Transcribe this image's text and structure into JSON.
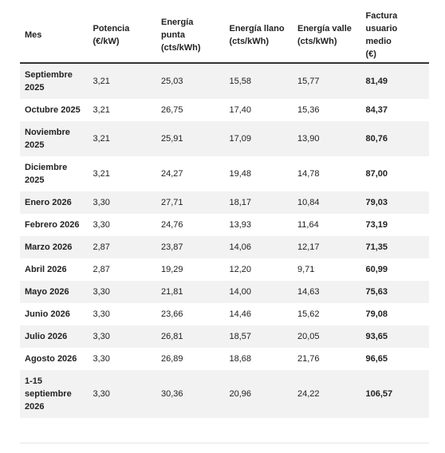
{
  "table": {
    "header": [
      [
        "Mes"
      ],
      [
        "Potencia",
        "(€/kW)"
      ],
      [
        "Energía",
        "punta",
        "(cts/kWh)"
      ],
      [
        "Energía llano",
        "(cts/kWh)"
      ],
      [
        "Energía valle",
        "(cts/kWh)"
      ],
      [
        "Factura",
        "usuario",
        "medio",
        "(€)"
      ]
    ],
    "rows": [
      [
        "Septiembre 2025",
        "3,21",
        "25,03",
        "15,58",
        "15,77",
        "81,49"
      ],
      [
        "Octubre 2025",
        "3,21",
        "26,75",
        "17,40",
        "15,36",
        "84,37"
      ],
      [
        "Noviembre 2025",
        "3,21",
        "25,91",
        "17,09",
        "13,90",
        "80,76"
      ],
      [
        "Diciembre 2025",
        "3,21",
        "24,27",
        "19,48",
        "14,78",
        "87,00"
      ],
      [
        "Enero 2026",
        "3,30",
        "27,71",
        "18,17",
        "10,84",
        "79,03"
      ],
      [
        "Febrero 2026",
        "3,30",
        "24,76",
        "13,93",
        "11,64",
        "73,19"
      ],
      [
        "Marzo 2026",
        "2,87",
        "23,87",
        "14,06",
        "12,17",
        "71,35"
      ],
      [
        "Abril 2026",
        "2,87",
        "19,29",
        "12,20",
        "9,71",
        "60,99"
      ],
      [
        "Mayo 2026",
        "3,30",
        "21,81",
        "14,00",
        "14,63",
        "75,63"
      ],
      [
        "Junio 2026",
        "3,30",
        "23,66",
        "14,46",
        "15,62",
        "79,08"
      ],
      [
        "Julio 2026",
        "3,30",
        "26,81",
        "18,57",
        "20,05",
        "93,65"
      ],
      [
        "Agosto 2026",
        "3,30",
        "26,89",
        "18,68",
        "21,76",
        "96,65"
      ],
      [
        "1-15 septiembre 2026",
        "3,30",
        "30,36",
        "20,96",
        "24,22",
        "106,57"
      ]
    ]
  }
}
